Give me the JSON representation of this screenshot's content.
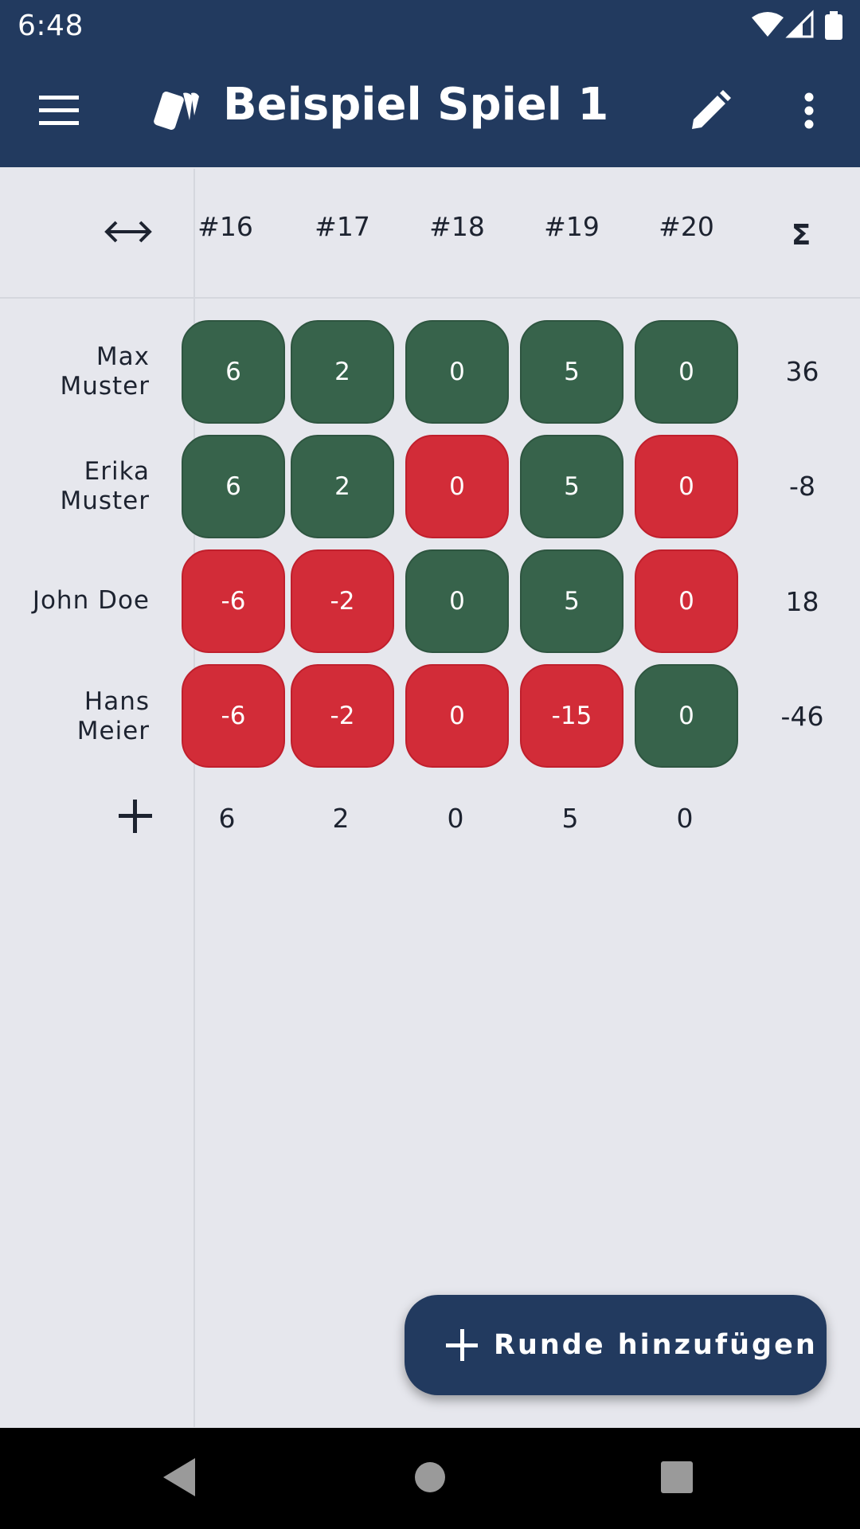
{
  "status_bar": {
    "time": "6:48"
  },
  "app_bar": {
    "title": "Beispiel Spiel 1"
  },
  "header": {
    "columns": [
      "#16",
      "#17",
      "#18",
      "#19",
      "#20"
    ],
    "sum_label": "Σ"
  },
  "players": [
    {
      "name": "Max Muster",
      "scores": [
        "6",
        "2",
        "0",
        "5",
        "0"
      ],
      "results": [
        "pos",
        "pos",
        "pos",
        "pos",
        "pos"
      ],
      "total": "36"
    },
    {
      "name": "Erika Muster",
      "scores": [
        "6",
        "2",
        "0",
        "5",
        "0"
      ],
      "results": [
        "pos",
        "pos",
        "neg",
        "pos",
        "neg"
      ],
      "total": "-8"
    },
    {
      "name": "John Doe",
      "scores": [
        "-6",
        "-2",
        "0",
        "5",
        "0"
      ],
      "results": [
        "neg",
        "neg",
        "pos",
        "pos",
        "neg"
      ],
      "total": "18"
    },
    {
      "name": "Hans Meier",
      "scores": [
        "-6",
        "-2",
        "0",
        "-15",
        "0"
      ],
      "results": [
        "neg",
        "neg",
        "neg",
        "neg",
        "pos"
      ],
      "total": "-46"
    }
  ],
  "round_values": [
    "6",
    "2",
    "0",
    "5",
    "0"
  ],
  "fab": {
    "label": "Runde hinzufügen"
  },
  "colors": {
    "primary": "#223a5f",
    "win": "#37634b",
    "loss": "#d22c38",
    "background": "#e6e7ed"
  }
}
